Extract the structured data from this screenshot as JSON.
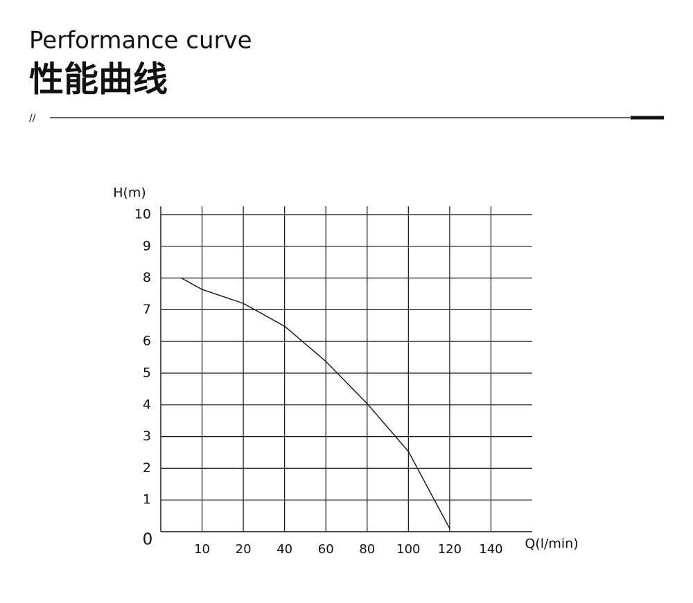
{
  "header": {
    "title": "Performance curve",
    "subtitle": "性能曲线",
    "divider_mark": "//"
  },
  "chart_data": {
    "type": "line",
    "y_label": "H(m)",
    "x_label": "Q(l/min)",
    "x": [
      5,
      10,
      20,
      40,
      60,
      80,
      100,
      120
    ],
    "series": [
      {
        "name": "H",
        "color": "#111111",
        "values": [
          8,
          7.64,
          7.2,
          6.48,
          5.37,
          4.04,
          2.53,
          0.1
        ]
      }
    ],
    "xlim": [
      0,
      160
    ],
    "xticks": [
      10,
      20,
      40,
      60,
      80,
      100,
      120,
      140
    ],
    "ylim": [
      0,
      10
    ],
    "yticks": [
      0,
      1,
      2,
      3,
      4,
      5,
      6,
      7,
      8,
      9,
      10
    ],
    "grid": true
  }
}
